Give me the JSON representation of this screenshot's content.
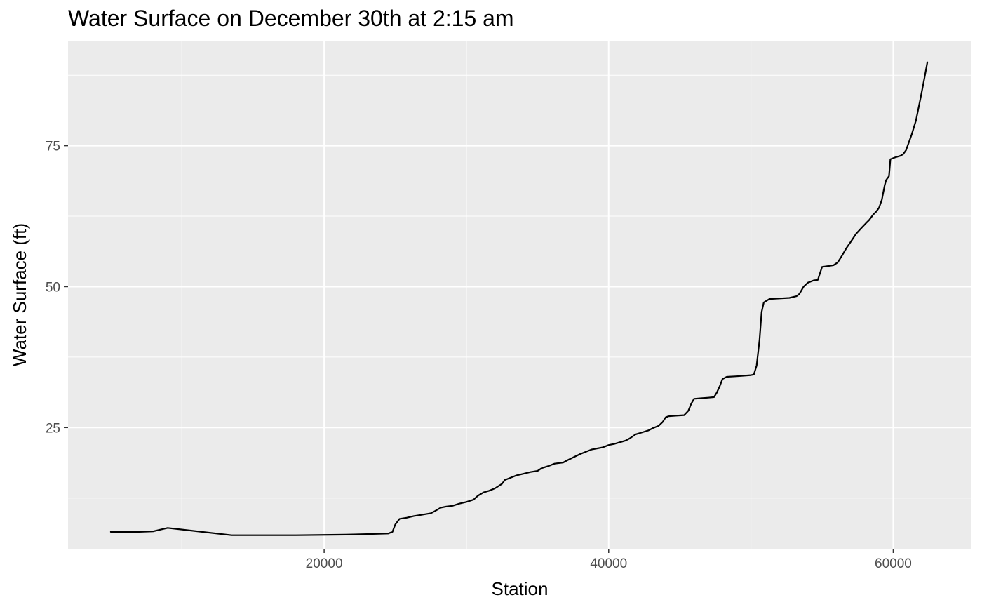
{
  "chart_data": {
    "type": "line",
    "title": "Water Surface on December 30th at 2:15 am",
    "xlabel": "Station",
    "ylabel": "Water Surface (ft)",
    "xlim": [
      2000,
      65500
    ],
    "ylim": [
      3.5,
      93.5
    ],
    "x_ticks": [
      20000,
      40000,
      60000
    ],
    "x_tick_labels": [
      "20000",
      "40000",
      "60000"
    ],
    "y_ticks": [
      25,
      50,
      75
    ],
    "y_tick_labels": [
      "25",
      "50",
      "75"
    ],
    "grid": true,
    "legend": "none",
    "colors": {
      "panel": "#EBEBEB",
      "grid": "#FFFFFF",
      "line": "#000000",
      "tick_text": "#4D4D4D",
      "tick_mark": "#333333"
    },
    "series": [
      {
        "x": [
          5000,
          7000,
          8000,
          8500,
          9000,
          13500,
          15000,
          18000,
          21500,
          23000,
          24500,
          24800,
          25000,
          25300,
          25800,
          26300,
          26800,
          27500,
          27800,
          28200,
          28600,
          29000,
          29500,
          30000,
          30500,
          30800,
          31200,
          31600,
          32000,
          32500,
          32700,
          33000,
          33500,
          34000,
          34500,
          35000,
          35300,
          35800,
          36200,
          36800,
          37100,
          37500,
          38000,
          38500,
          38800,
          39200,
          39600,
          40000,
          40400,
          40800,
          41200,
          41500,
          41900,
          42300,
          42800,
          43100,
          43500,
          43800,
          44000,
          44200,
          44700,
          45300,
          45600,
          45800,
          46000,
          46500,
          47000,
          47400,
          47600,
          47800,
          48000,
          48300,
          49000,
          49500,
          50000,
          50200,
          50400,
          50600,
          50750,
          50900,
          51300,
          52000,
          52700,
          53200,
          53400,
          53700,
          54000,
          54400,
          54700,
          55000,
          55300,
          55800,
          56100,
          56400,
          56700,
          57000,
          57400,
          57800,
          58100,
          58300,
          58600,
          58800,
          59000,
          59200,
          59400,
          59500,
          59700,
          59800,
          60100,
          60500,
          60700,
          60900,
          61300,
          61600,
          61900,
          62200,
          62400
        ],
        "y": [
          6.5,
          6.5,
          6.6,
          6.9,
          7.2,
          5.9,
          5.9,
          5.9,
          6.0,
          6.1,
          6.2,
          6.5,
          7.8,
          8.8,
          9.0,
          9.3,
          9.5,
          9.8,
          10.2,
          10.8,
          11.0,
          11.1,
          11.5,
          11.8,
          12.2,
          12.9,
          13.5,
          13.8,
          14.2,
          15.0,
          15.7,
          16.0,
          16.5,
          16.8,
          17.1,
          17.3,
          17.8,
          18.2,
          18.6,
          18.8,
          19.2,
          19.7,
          20.3,
          20.8,
          21.1,
          21.3,
          21.5,
          21.9,
          22.1,
          22.4,
          22.7,
          23.1,
          23.8,
          24.1,
          24.5,
          24.9,
          25.3,
          26.0,
          26.8,
          27.0,
          27.1,
          27.2,
          28.0,
          29.2,
          30.1,
          30.2,
          30.3,
          30.4,
          31.2,
          32.3,
          33.6,
          34.0,
          34.1,
          34.2,
          34.3,
          34.4,
          36.0,
          40.5,
          45.5,
          47.2,
          47.8,
          47.9,
          48.0,
          48.3,
          48.7,
          50.0,
          50.7,
          51.1,
          51.2,
          53.5,
          53.6,
          53.8,
          54.3,
          55.5,
          56.8,
          57.9,
          59.4,
          60.5,
          61.3,
          61.8,
          62.8,
          63.3,
          64.0,
          65.4,
          68.0,
          68.9,
          69.6,
          72.6,
          72.9,
          73.2,
          73.5,
          74.2,
          77.0,
          79.5,
          83.2,
          87.1,
          89.8
        ]
      }
    ]
  }
}
